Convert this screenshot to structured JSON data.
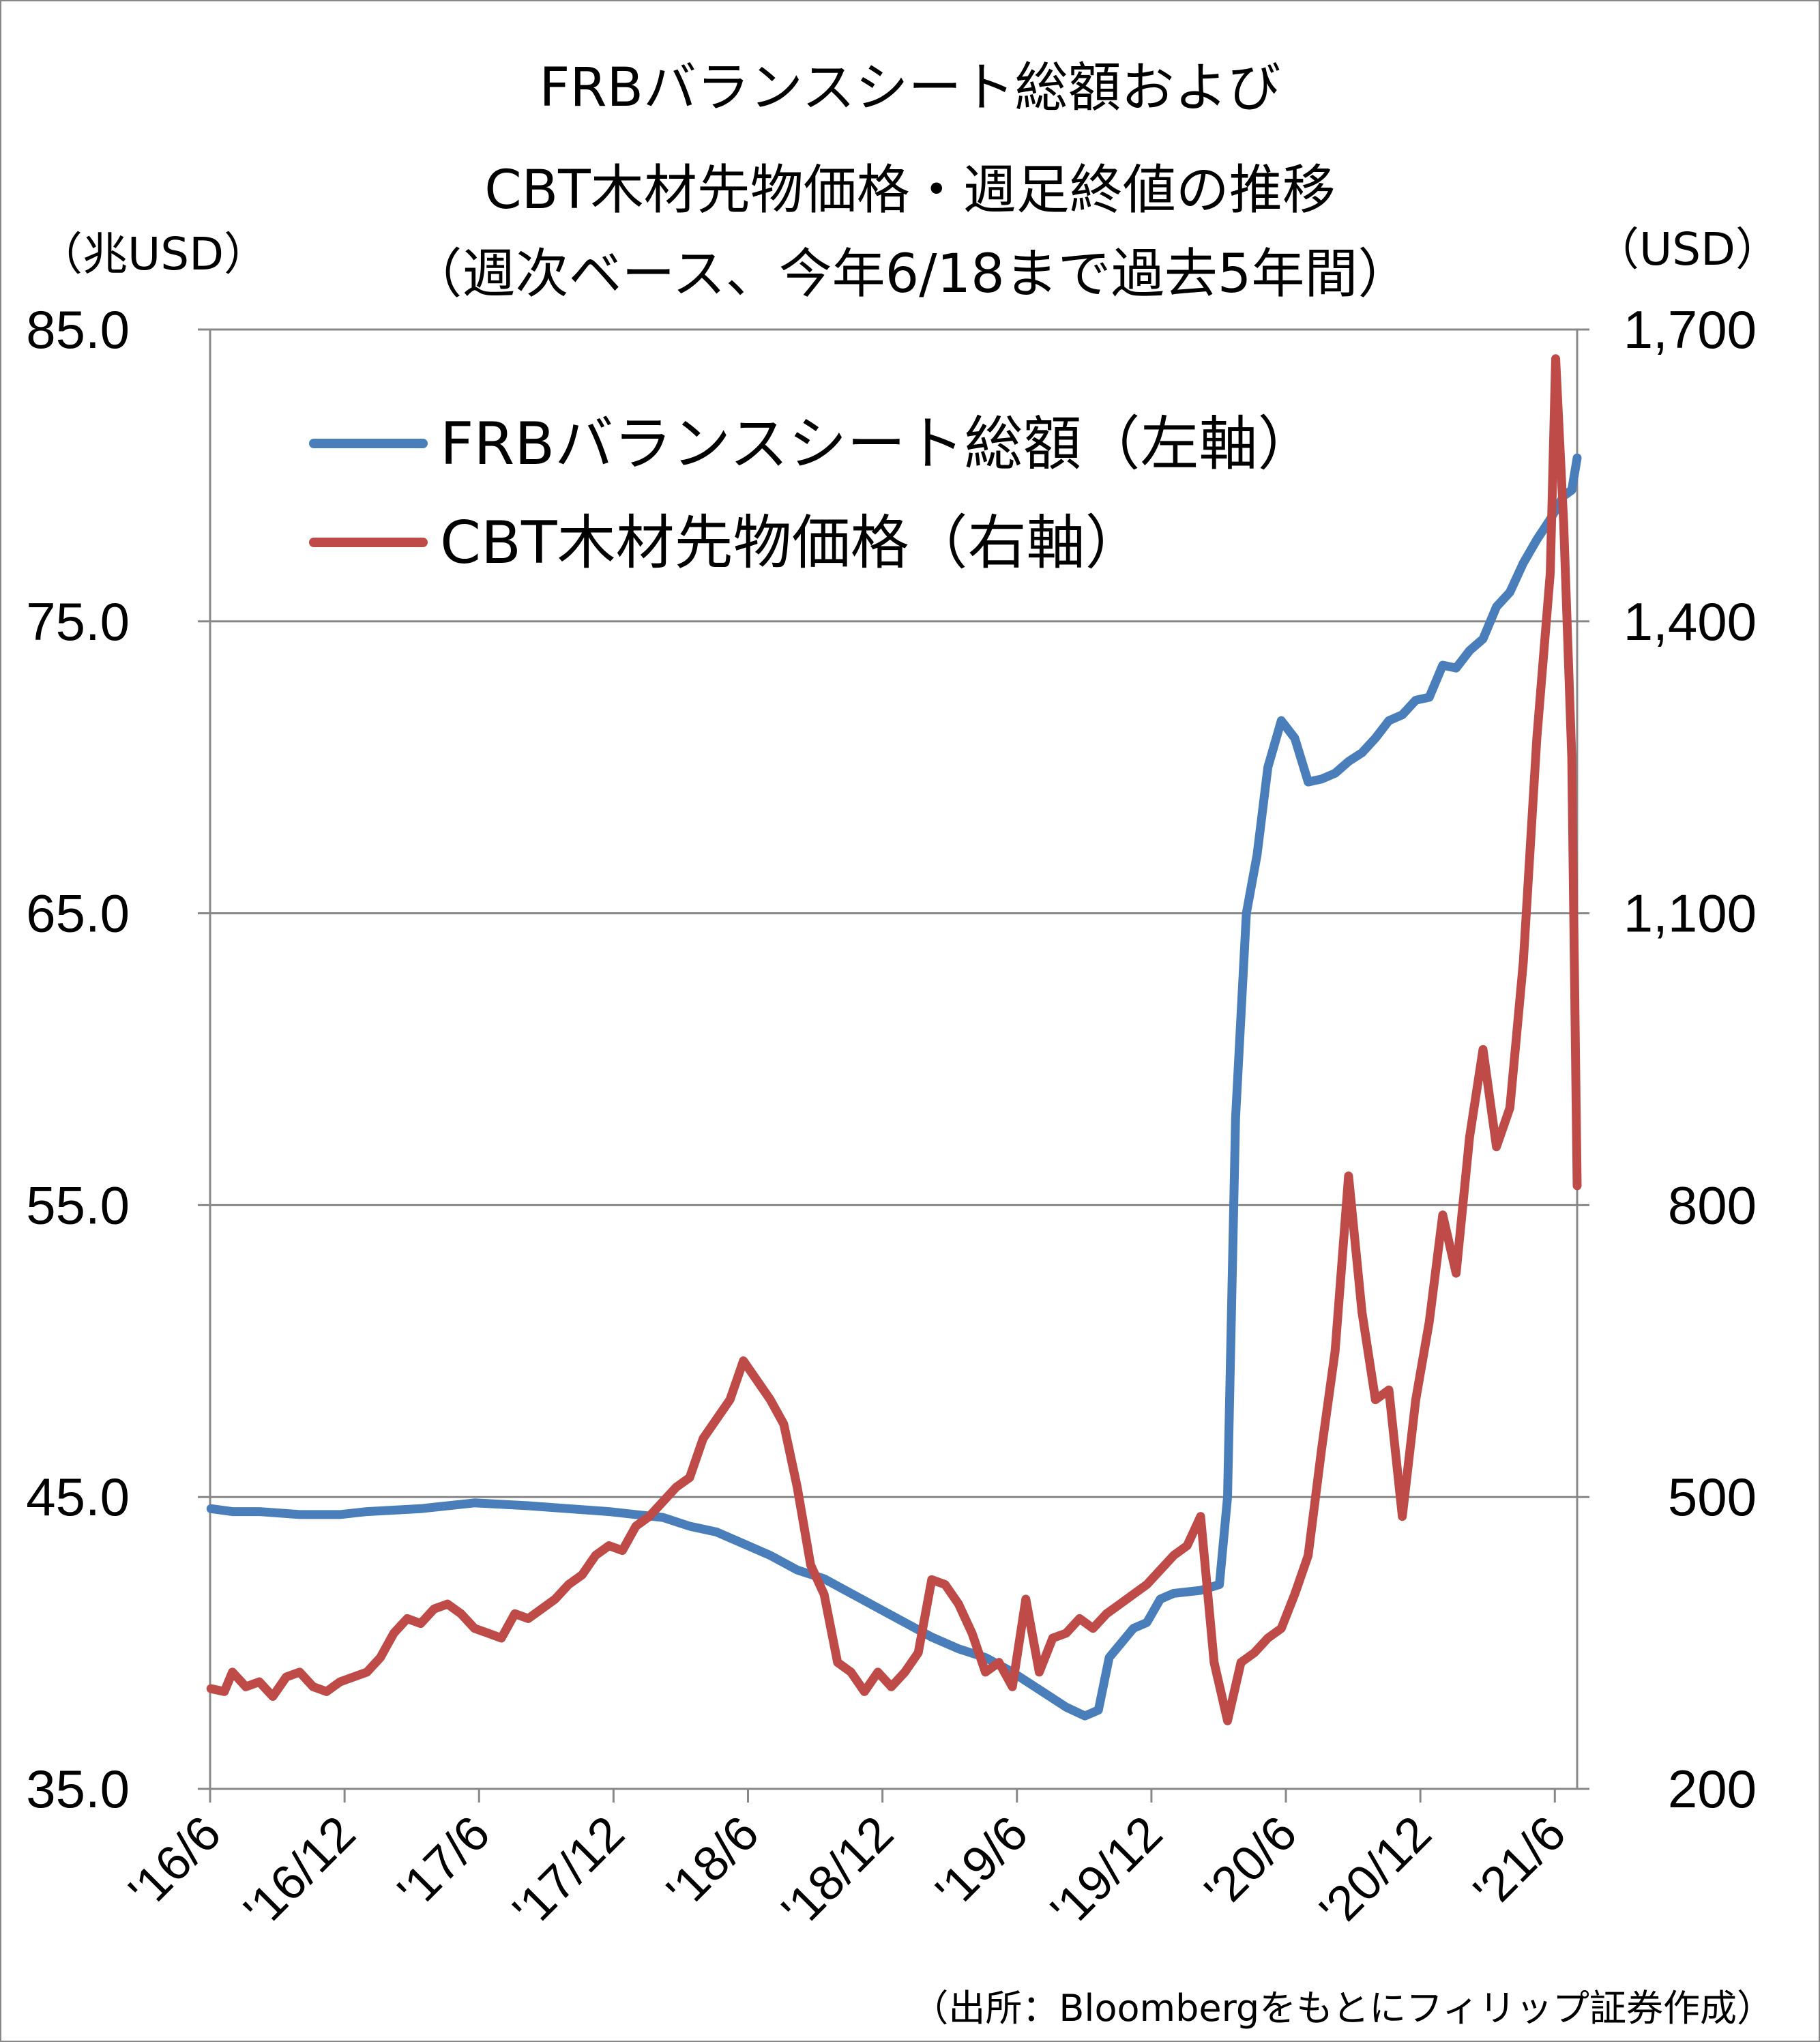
{
  "chart_data": {
    "type": "line",
    "title_lines": [
      "FRBバランスシート総額および",
      "CBT木材先物価格・週足終値の推移",
      "（週次ベース、今年6/18まで過去5年間）"
    ],
    "y_left_unit": "（兆USD）",
    "y_right_unit": "（USD）",
    "y_left_ticks": [
      "85.0",
      "75.0",
      "65.0",
      "55.0",
      "45.0",
      "35.0"
    ],
    "y_right_ticks": [
      "1,700",
      "1,400",
      "1,100",
      "800",
      "500",
      "200"
    ],
    "y_left_lim": [
      35,
      85
    ],
    "y_right_lim": [
      200,
      1700
    ],
    "x_lim": [
      2016.417,
      2021.5
    ],
    "x_ticks": [
      {
        "label": "'16/6",
        "x": 2016.417
      },
      {
        "label": "'16/12",
        "x": 2016.917
      },
      {
        "label": "'17/6",
        "x": 2017.417
      },
      {
        "label": "'17/12",
        "x": 2017.917
      },
      {
        "label": "'18/6",
        "x": 2018.417
      },
      {
        "label": "'18/12",
        "x": 2018.917
      },
      {
        "label": "'19/6",
        "x": 2019.417
      },
      {
        "label": "'19/12",
        "x": 2019.917
      },
      {
        "label": "'20/6",
        "x": 2020.417
      },
      {
        "label": "'20/12",
        "x": 2020.917
      },
      {
        "label": "'21/6",
        "x": 2021.417
      }
    ],
    "grid": "horizontal",
    "legend_position": "top-left",
    "series": [
      {
        "name": "FRBバランスシート総額（左軸）",
        "axis": "left",
        "color": "#4a7ebb",
        "points": [
          [
            2016.42,
            44.6
          ],
          [
            2016.5,
            44.5
          ],
          [
            2016.6,
            44.5
          ],
          [
            2016.75,
            44.4
          ],
          [
            2016.9,
            44.4
          ],
          [
            2017.0,
            44.5
          ],
          [
            2017.2,
            44.6
          ],
          [
            2017.4,
            44.8
          ],
          [
            2017.6,
            44.7
          ],
          [
            2017.75,
            44.6
          ],
          [
            2017.9,
            44.5
          ],
          [
            2018.0,
            44.4
          ],
          [
            2018.1,
            44.3
          ],
          [
            2018.2,
            44.0
          ],
          [
            2018.3,
            43.8
          ],
          [
            2018.4,
            43.4
          ],
          [
            2018.5,
            43.0
          ],
          [
            2018.6,
            42.5
          ],
          [
            2018.7,
            42.2
          ],
          [
            2018.8,
            41.7
          ],
          [
            2018.9,
            41.2
          ],
          [
            2019.0,
            40.7
          ],
          [
            2019.1,
            40.2
          ],
          [
            2019.2,
            39.8
          ],
          [
            2019.3,
            39.5
          ],
          [
            2019.4,
            39.0
          ],
          [
            2019.5,
            38.4
          ],
          [
            2019.6,
            37.8
          ],
          [
            2019.67,
            37.5
          ],
          [
            2019.72,
            37.7
          ],
          [
            2019.76,
            39.5
          ],
          [
            2019.85,
            40.5
          ],
          [
            2019.9,
            40.7
          ],
          [
            2019.95,
            41.5
          ],
          [
            2020.0,
            41.7
          ],
          [
            2020.1,
            41.8
          ],
          [
            2020.17,
            42.0
          ],
          [
            2020.2,
            45.0
          ],
          [
            2020.23,
            58.0
          ],
          [
            2020.27,
            65.0
          ],
          [
            2020.31,
            67.0
          ],
          [
            2020.35,
            70.0
          ],
          [
            2020.4,
            71.6
          ],
          [
            2020.45,
            71.0
          ],
          [
            2020.5,
            69.5
          ],
          [
            2020.55,
            69.6
          ],
          [
            2020.6,
            69.8
          ],
          [
            2020.65,
            70.2
          ],
          [
            2020.7,
            70.5
          ],
          [
            2020.75,
            71.0
          ],
          [
            2020.8,
            71.6
          ],
          [
            2020.85,
            71.8
          ],
          [
            2020.9,
            72.3
          ],
          [
            2020.95,
            72.4
          ],
          [
            2021.0,
            73.5
          ],
          [
            2021.05,
            73.4
          ],
          [
            2021.1,
            74.0
          ],
          [
            2021.15,
            74.4
          ],
          [
            2021.2,
            75.5
          ],
          [
            2021.25,
            76.0
          ],
          [
            2021.3,
            77.0
          ],
          [
            2021.35,
            77.8
          ],
          [
            2021.4,
            78.5
          ],
          [
            2021.45,
            79.3
          ],
          [
            2021.48,
            79.5
          ],
          [
            2021.5,
            80.6
          ]
        ]
      },
      {
        "name": "CBT木材先物価格（右軸）",
        "axis": "right",
        "color": "#be4b48",
        "points": [
          [
            2016.42,
            303
          ],
          [
            2016.47,
            300
          ],
          [
            2016.5,
            320
          ],
          [
            2016.55,
            305
          ],
          [
            2016.6,
            310
          ],
          [
            2016.65,
            295
          ],
          [
            2016.7,
            315
          ],
          [
            2016.75,
            320
          ],
          [
            2016.8,
            305
          ],
          [
            2016.85,
            300
          ],
          [
            2016.9,
            310
          ],
          [
            2016.95,
            315
          ],
          [
            2017.0,
            320
          ],
          [
            2017.05,
            335
          ],
          [
            2017.1,
            360
          ],
          [
            2017.15,
            375
          ],
          [
            2017.2,
            370
          ],
          [
            2017.25,
            385
          ],
          [
            2017.3,
            390
          ],
          [
            2017.35,
            380
          ],
          [
            2017.4,
            365
          ],
          [
            2017.45,
            360
          ],
          [
            2017.5,
            355
          ],
          [
            2017.55,
            380
          ],
          [
            2017.6,
            375
          ],
          [
            2017.65,
            385
          ],
          [
            2017.7,
            395
          ],
          [
            2017.75,
            410
          ],
          [
            2017.8,
            420
          ],
          [
            2017.85,
            440
          ],
          [
            2017.9,
            450
          ],
          [
            2017.95,
            445
          ],
          [
            2018.0,
            470
          ],
          [
            2018.05,
            480
          ],
          [
            2018.1,
            495
          ],
          [
            2018.15,
            510
          ],
          [
            2018.2,
            520
          ],
          [
            2018.25,
            560
          ],
          [
            2018.3,
            580
          ],
          [
            2018.35,
            600
          ],
          [
            2018.4,
            640
          ],
          [
            2018.45,
            620
          ],
          [
            2018.5,
            600
          ],
          [
            2018.55,
            575
          ],
          [
            2018.6,
            510
          ],
          [
            2018.65,
            430
          ],
          [
            2018.7,
            400
          ],
          [
            2018.75,
            330
          ],
          [
            2018.8,
            320
          ],
          [
            2018.85,
            300
          ],
          [
            2018.9,
            320
          ],
          [
            2018.95,
            305
          ],
          [
            2019.0,
            320
          ],
          [
            2019.05,
            340
          ],
          [
            2019.1,
            415
          ],
          [
            2019.15,
            410
          ],
          [
            2019.2,
            390
          ],
          [
            2019.25,
            360
          ],
          [
            2019.3,
            320
          ],
          [
            2019.35,
            330
          ],
          [
            2019.4,
            305
          ],
          [
            2019.45,
            395
          ],
          [
            2019.5,
            320
          ],
          [
            2019.55,
            355
          ],
          [
            2019.6,
            360
          ],
          [
            2019.65,
            375
          ],
          [
            2019.7,
            365
          ],
          [
            2019.75,
            380
          ],
          [
            2019.8,
            390
          ],
          [
            2019.85,
            400
          ],
          [
            2019.9,
            410
          ],
          [
            2019.95,
            425
          ],
          [
            2020.0,
            440
          ],
          [
            2020.05,
            450
          ],
          [
            2020.1,
            480
          ],
          [
            2020.15,
            330
          ],
          [
            2020.2,
            270
          ],
          [
            2020.25,
            330
          ],
          [
            2020.3,
            340
          ],
          [
            2020.35,
            355
          ],
          [
            2020.4,
            365
          ],
          [
            2020.45,
            400
          ],
          [
            2020.5,
            440
          ],
          [
            2020.55,
            550
          ],
          [
            2020.6,
            650
          ],
          [
            2020.65,
            830
          ],
          [
            2020.7,
            690
          ],
          [
            2020.75,
            600
          ],
          [
            2020.8,
            610
          ],
          [
            2020.85,
            480
          ],
          [
            2020.9,
            600
          ],
          [
            2020.95,
            680
          ],
          [
            2021.0,
            790
          ],
          [
            2021.05,
            730
          ],
          [
            2021.1,
            870
          ],
          [
            2021.15,
            960
          ],
          [
            2021.2,
            860
          ],
          [
            2021.25,
            900
          ],
          [
            2021.3,
            1050
          ],
          [
            2021.35,
            1280
          ],
          [
            2021.4,
            1450
          ],
          [
            2021.42,
            1670
          ],
          [
            2021.45,
            1500
          ],
          [
            2021.48,
            1260
          ],
          [
            2021.5,
            820
          ]
        ]
      }
    ],
    "source": "（出所：Bloombergをもとにフィリップ証券作成）"
  }
}
